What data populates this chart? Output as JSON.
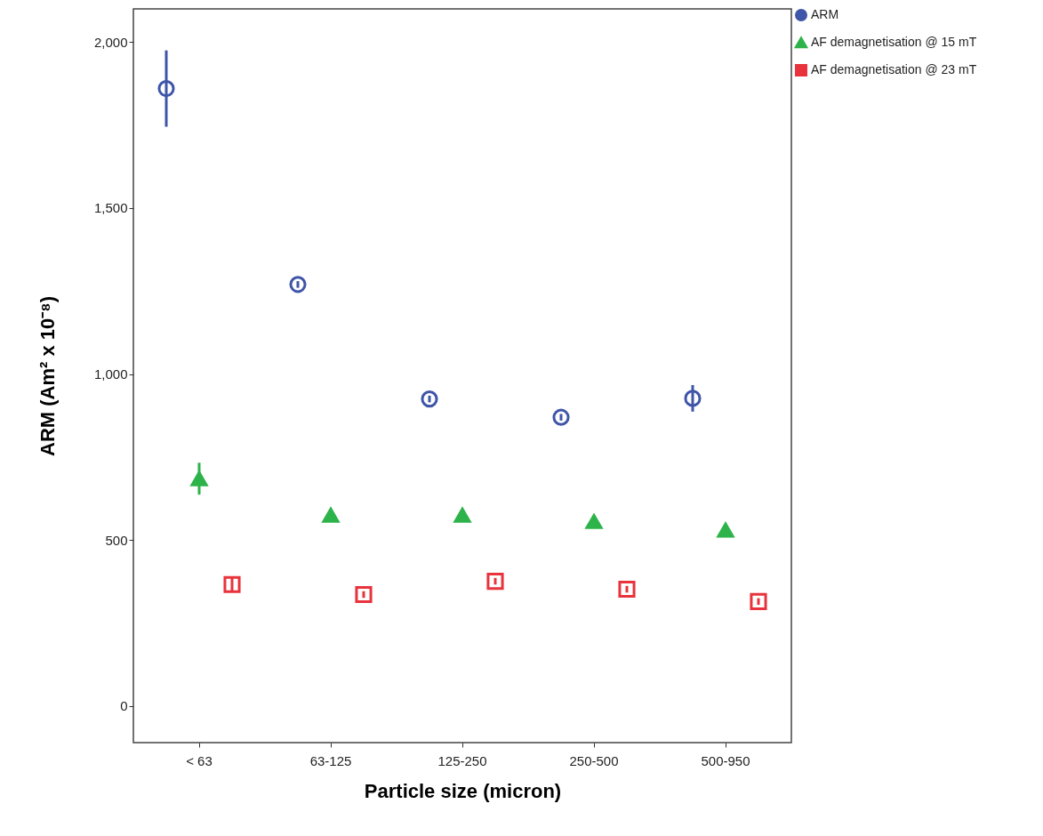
{
  "chart_data": {
    "type": "scatter",
    "xlabel": "Particle size (micron)",
    "ylabel": "ARM (Am² x 10⁻⁸)",
    "categories": [
      "< 63",
      "63-125",
      "125-250",
      "250-500",
      "500-950"
    ],
    "ylim": [
      -110,
      2100
    ],
    "yticks": [
      0,
      {
        "value": 500,
        "label": "500"
      },
      {
        "value": 1000,
        "label": "1,000"
      },
      {
        "value": 1500,
        "label": "1,500"
      },
      {
        "value": 2000,
        "label": "2,000"
      }
    ],
    "grid": false,
    "legend": "top right",
    "series": [
      {
        "name": "ARM",
        "color": "#3f55a8",
        "marker": "circle",
        "values": [
          1860,
          1270,
          925,
          870,
          927
        ],
        "errors": [
          115,
          10,
          10,
          10,
          40
        ]
      },
      {
        "name": "AF demagnetisation @ 15 mT",
        "color": "#2db34a",
        "marker": "triangle",
        "values": [
          685,
          575,
          575,
          556,
          530
        ],
        "errors": [
          48,
          null,
          null,
          10,
          10
        ]
      },
      {
        "name": "AF demagnetisation @ 23 mT",
        "color": "#e8333c",
        "marker": "square",
        "values": [
          366,
          336,
          376,
          352,
          315
        ],
        "errors": [
          20,
          10,
          10,
          10,
          10
        ]
      }
    ]
  }
}
